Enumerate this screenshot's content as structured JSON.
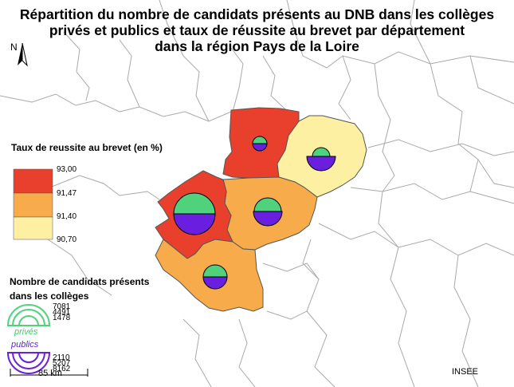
{
  "title": {
    "line1": "Répartition du nombre de candidats présents au DNB dans les collèges",
    "line2": "privés et publics et taux de réussite au brevet par département",
    "line3": "dans la région Pays de la Loire"
  },
  "north_label": "N",
  "legend": {
    "title": "Taux de reussite au brevet (en %)",
    "ticks": [
      "93,00",
      "91,47",
      "91,40",
      "90,70"
    ],
    "colors": [
      "#e8402d",
      "#f7ab4a",
      "#fdf0a2"
    ]
  },
  "size_legend": {
    "title_line1": "Nombre de candidats présents",
    "title_line2": "dans les collèges",
    "prive_values": [
      "7081",
      "4491",
      "1478"
    ],
    "public_values": [
      "2110",
      "5207",
      "8162"
    ],
    "prive_label": "privés",
    "public_label": "publics",
    "prive_color": "#50d27c",
    "public_color": "#6a1fe0"
  },
  "scale_bar": {
    "label": "85 km"
  },
  "source": "INSEE",
  "departments": [
    {
      "id": "mayenne",
      "fill": "#e8402d"
    },
    {
      "id": "sarthe",
      "fill": "#fdf0a2"
    },
    {
      "id": "maine-et-loire",
      "fill": "#f7ab4a"
    },
    {
      "id": "loire-atlantique",
      "fill": "#e8402d"
    },
    {
      "id": "vendee",
      "fill": "#f7ab4a"
    }
  ]
}
